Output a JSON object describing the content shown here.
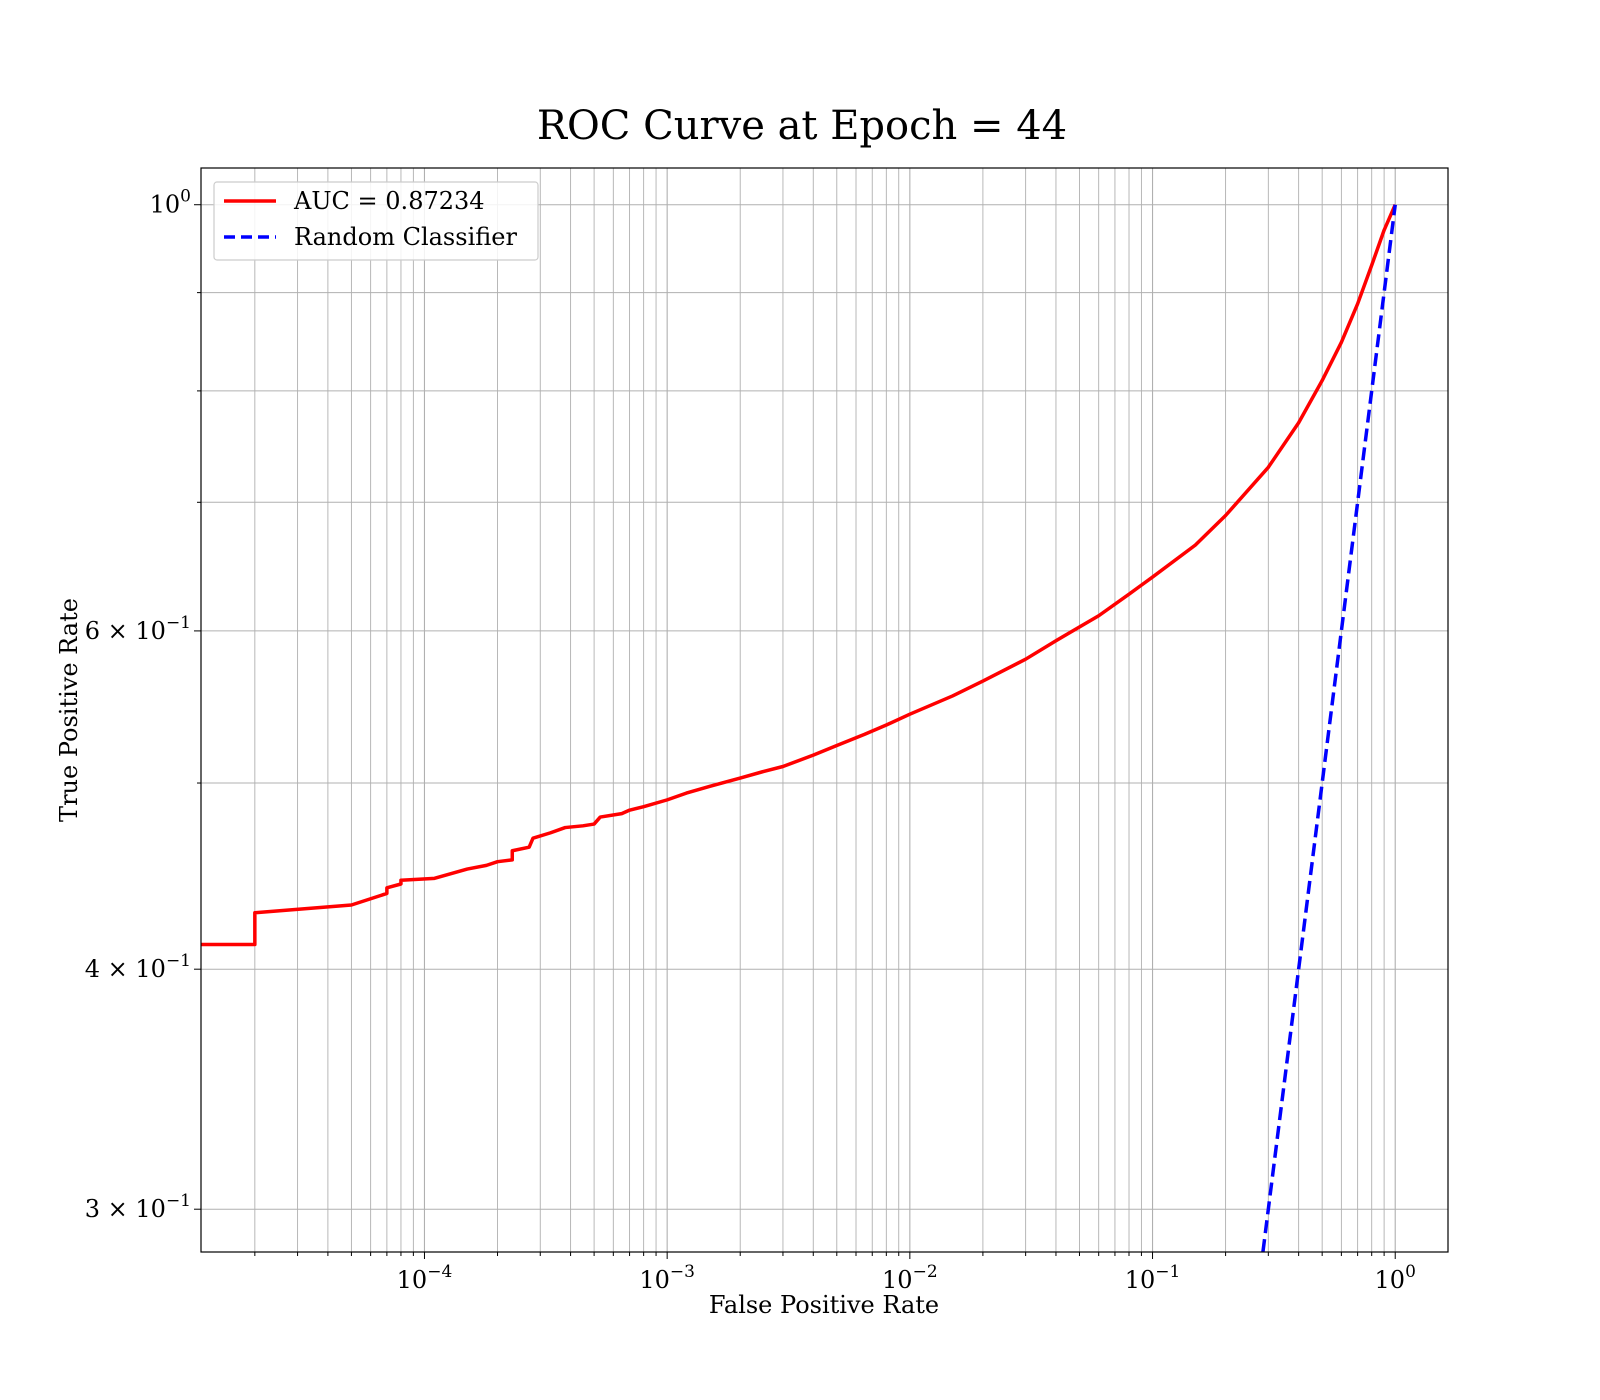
{
  "chart_data": {
    "type": "line",
    "title": "ROC Curve at Epoch = 44",
    "xlabel": "False Positive Rate",
    "ylabel": "True Positive Rate",
    "xscale": "log",
    "yscale": "log",
    "xlim": [
      1.2e-05,
      1.65
    ],
    "ylim": [
      0.285,
      1.045
    ],
    "grid": "major and minor",
    "legend_position": "top-left",
    "x_ticks": [
      {
        "value": 0.0001,
        "base": "10",
        "exp": "−4"
      },
      {
        "value": 0.001,
        "base": "10",
        "exp": "−3"
      },
      {
        "value": 0.01,
        "base": "10",
        "exp": "−2"
      },
      {
        "value": 0.1,
        "base": "10",
        "exp": "−1"
      },
      {
        "value": 1,
        "base": "10",
        "exp": "0"
      }
    ],
    "y_ticks": [
      {
        "value": 1.0,
        "base": "10",
        "exp": "0"
      },
      {
        "value": 0.6,
        "base": "6 × 10",
        "exp": "−1"
      },
      {
        "value": 0.4,
        "base": "4 × 10",
        "exp": "−1"
      },
      {
        "value": 0.3,
        "base": "3 × 10",
        "exp": "−1"
      }
    ],
    "y_minor_gridlines": [
      0.5,
      0.7,
      0.8,
      0.9
    ],
    "series": [
      {
        "name": "AUC = 0.87234",
        "color": "#ff0000",
        "style": "solid",
        "points": [
          [
            1.2e-05,
            0.412
          ],
          [
            2e-05,
            0.412
          ],
          [
            2e-05,
            0.428
          ],
          [
            5e-05,
            0.432
          ],
          [
            7e-05,
            0.438
          ],
          [
            7e-05,
            0.441
          ],
          [
            8e-05,
            0.443
          ],
          [
            8e-05,
            0.445
          ],
          [
            0.00011,
            0.446
          ],
          [
            0.00015,
            0.451
          ],
          [
            0.00018,
            0.453
          ],
          [
            0.0002,
            0.455
          ],
          [
            0.00023,
            0.456
          ],
          [
            0.00023,
            0.461
          ],
          [
            0.00027,
            0.463
          ],
          [
            0.00028,
            0.468
          ],
          [
            0.00033,
            0.471
          ],
          [
            0.00038,
            0.474
          ],
          [
            0.00045,
            0.475
          ],
          [
            0.0005,
            0.476
          ],
          [
            0.00053,
            0.48
          ],
          [
            0.00065,
            0.482
          ],
          [
            0.0007,
            0.484
          ],
          [
            0.0008,
            0.486
          ],
          [
            0.001,
            0.49
          ],
          [
            0.0012,
            0.494
          ],
          [
            0.0015,
            0.498
          ],
          [
            0.002,
            0.503
          ],
          [
            0.0025,
            0.507
          ],
          [
            0.003,
            0.51
          ],
          [
            0.004,
            0.517
          ],
          [
            0.005,
            0.523
          ],
          [
            0.0065,
            0.53
          ],
          [
            0.008,
            0.536
          ],
          [
            0.01,
            0.543
          ],
          [
            0.015,
            0.555
          ],
          [
            0.02,
            0.565
          ],
          [
            0.03,
            0.58
          ],
          [
            0.04,
            0.593
          ],
          [
            0.06,
            0.611
          ],
          [
            0.08,
            0.627
          ],
          [
            0.1,
            0.64
          ],
          [
            0.15,
            0.665
          ],
          [
            0.2,
            0.689
          ],
          [
            0.3,
            0.73
          ],
          [
            0.4,
            0.77
          ],
          [
            0.5,
            0.81
          ],
          [
            0.6,
            0.848
          ],
          [
            0.7,
            0.888
          ],
          [
            0.8,
            0.93
          ],
          [
            0.9,
            0.97
          ],
          [
            1.0,
            1.0
          ]
        ]
      },
      {
        "name": "Random Classifier",
        "color": "#0000ff",
        "style": "dashed",
        "points": [
          [
            0.285,
            0.285
          ],
          [
            0.4,
            0.4
          ],
          [
            0.5,
            0.5
          ],
          [
            0.6,
            0.6
          ],
          [
            0.7,
            0.7
          ],
          [
            0.8,
            0.8
          ],
          [
            0.9,
            0.9
          ],
          [
            1.0,
            1.0
          ]
        ]
      }
    ]
  }
}
